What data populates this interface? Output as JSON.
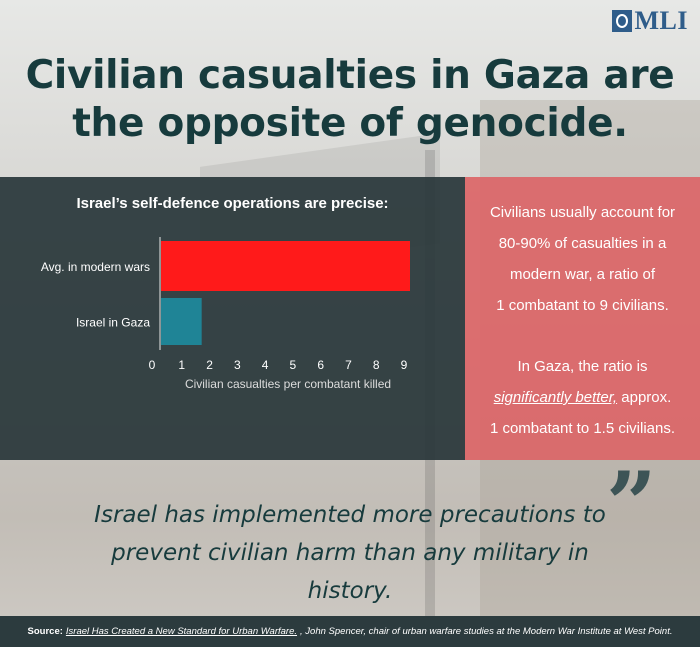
{
  "logo": {
    "text": "MLI"
  },
  "headline": {
    "line1": "Civilian casualties in Gaza are",
    "line2": "the opposite of genocide."
  },
  "chart_data": {
    "type": "bar",
    "orientation": "horizontal",
    "title": "Israel’s self-defence operations are precise:",
    "categories": [
      "Avg. in modern wars",
      "Israel in Gaza"
    ],
    "values": [
      9,
      1.5
    ],
    "colors": [
      "#ff1a1a",
      "#1f8496"
    ],
    "xlabel": "Civilian casualties per combatant killed",
    "xticks": [
      "0",
      "1",
      "2",
      "3",
      "4",
      "5",
      "6",
      "7",
      "8",
      "9"
    ],
    "xlim": [
      0,
      9
    ],
    "grid": false
  },
  "info": {
    "p1": [
      "Civilians usually account for",
      "80-90% of casualties in a",
      "modern war, a ratio of",
      "1 combatant to 9 civilians."
    ],
    "p2_line1": "In Gaza, the ratio is",
    "p2_emph": "significantly better,",
    "p2_emph_after": " approx.",
    "p2_line3": "1 combatant to 1.5 civilians."
  },
  "quote": {
    "line1": "Israel has implemented more precautions to",
    "line2": "prevent civilian harm than any military in history.",
    "mark": "”"
  },
  "source": {
    "label": "Source:",
    "title": "Israel Has Created a New Standard for Urban Warfare.",
    "rest": ", John Spencer, chair of urban warfare studies at the Modern War Institute at West Point."
  },
  "colors": {
    "title": "#173b3d",
    "chart_panel": "#28363a",
    "info_panel": "#db6668",
    "bar_modern": "#ff1a1a",
    "bar_gaza": "#1f8496",
    "logo": "#2f5d8a"
  }
}
